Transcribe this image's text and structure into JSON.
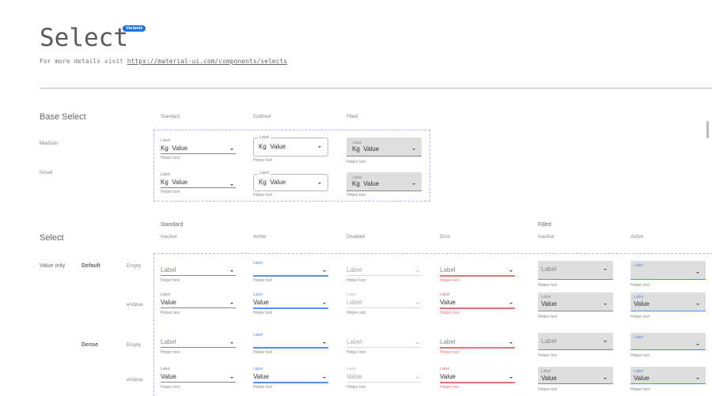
{
  "header": {
    "title": "Select",
    "badge": "Variants",
    "subtitle_prefix": "For more details visit ",
    "link": "https://material-ui.com/components/selects"
  },
  "base": {
    "heading": "Base Select",
    "columns": [
      "Standard",
      "Outlined",
      "Filled"
    ],
    "rows": [
      "Medium",
      "Small"
    ],
    "label": "Label",
    "value": "Value",
    "unit": "Kg",
    "helper": "Helper text"
  },
  "select": {
    "heading": "Select",
    "groups": [
      "Standard",
      "Filled"
    ],
    "columns": [
      "Inactive",
      "Active",
      "Disabled",
      "Error",
      "Inactive",
      "Active"
    ],
    "row_groups": {
      "value_only": "Value only",
      "default": "Default",
      "dense": "Dense"
    },
    "rows": [
      "Empty",
      "wValue",
      "Empty",
      "wValue"
    ],
    "label": "Label",
    "value": "Value",
    "helper": "Helper text",
    "column_states": [
      "inactive",
      "active",
      "disabled",
      "error",
      "filled-inactive",
      "filled-active"
    ]
  },
  "colors": {
    "accent": "#1a73e8",
    "active": "#5b8def",
    "error": "#e57373",
    "filled_bg": "#dedede",
    "dashed": "#b9b5e8"
  }
}
